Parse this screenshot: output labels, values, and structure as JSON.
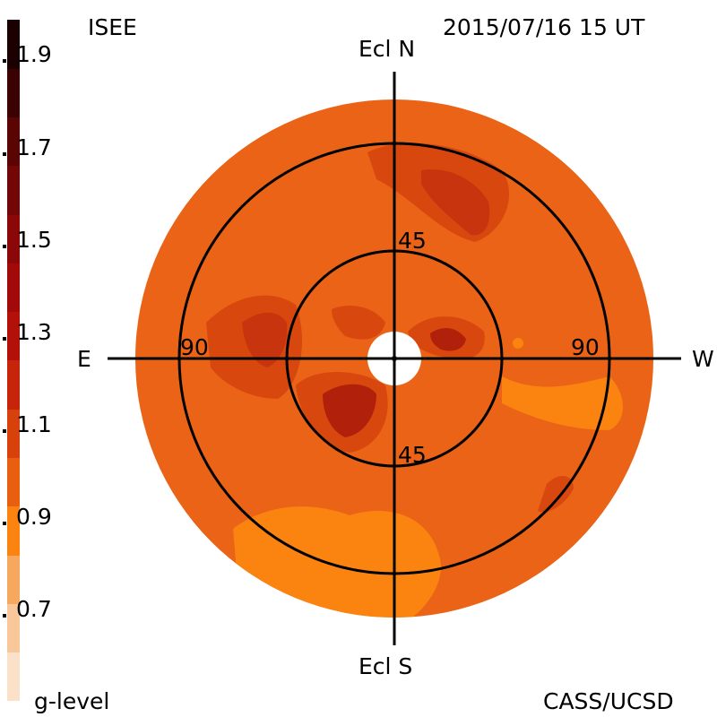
{
  "header": {
    "source_label": "ISEE",
    "timestamp": "2015/07/16 15 UT",
    "credit": "CASS/UCSD"
  },
  "colorbar": {
    "title": "g-level",
    "tick_labels": [
      "1.9",
      "1.7",
      "1.5",
      "1.3",
      "1.1",
      "0.9",
      "0.7"
    ],
    "colors": [
      "#fbe1c8",
      "#f8c89b",
      "#f7a85f",
      "#fb8410",
      "#e8600f",
      "#d9410c",
      "#c7250b",
      "#b4100a",
      "#a10a08",
      "#8c0808",
      "#730606",
      "#5a0404",
      "#3a0202",
      "#1a0000"
    ]
  },
  "map": {
    "north_label": "Ecl N",
    "south_label": "Ecl S",
    "east_label": "E",
    "west_label": "W",
    "inner_ring_label_top": "45",
    "inner_ring_label_bottom": "45",
    "outer_ring_label_left": "90",
    "outer_ring_label_right": "90",
    "background_color": "#ea6316",
    "region_colors": {
      "darker": "#c8340d",
      "darkest": "#b0200b",
      "lighter": "#fb8410"
    }
  }
}
